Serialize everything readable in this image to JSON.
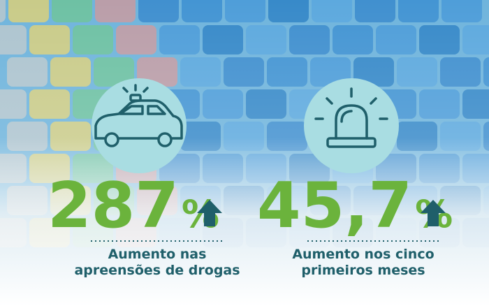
{
  "stats": [
    {
      "value": "287",
      "unit": "%",
      "label": [
        "Aumento nas",
        "apreensões de drogas"
      ]
    },
    {
      "value": "45,7",
      "unit": "%",
      "label": [
        "Aumento nos cinco",
        "primeiros meses"
      ]
    }
  ]
}
